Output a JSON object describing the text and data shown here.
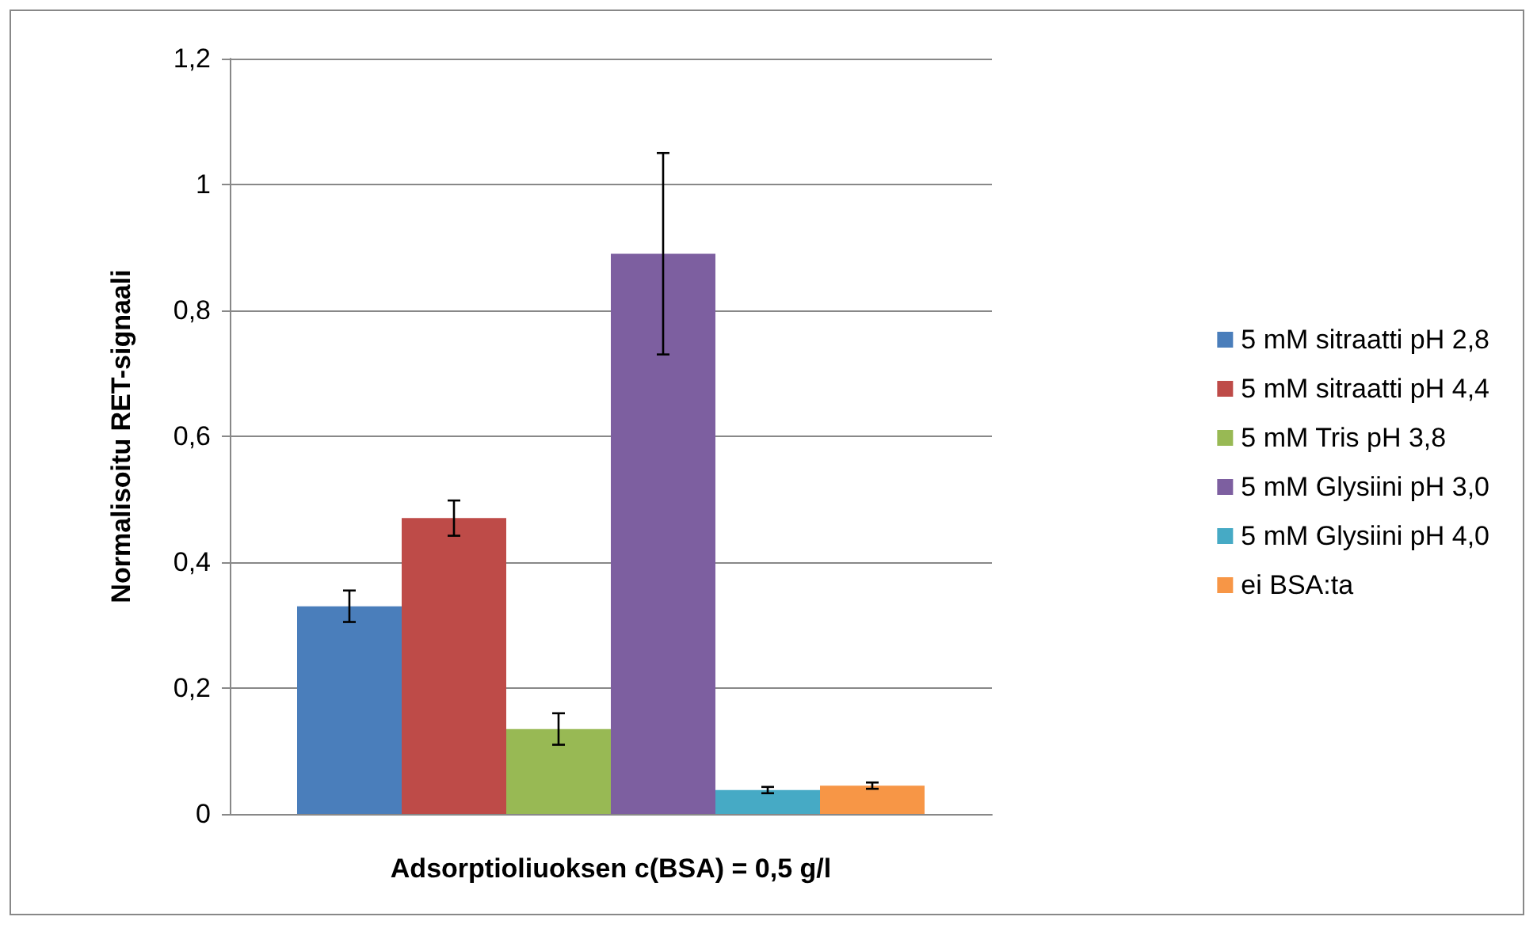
{
  "chart_data": {
    "type": "bar",
    "xlabel": "Adsorptioliuoksen c(BSA) = 0,5 g/l",
    "ylabel": "Normalisoitu RET-signaali",
    "categories": [
      null
    ],
    "series": [
      {
        "name": "5 mM sitraatti pH 2,8",
        "color": "#4a7ebb",
        "values": [
          0.33
        ],
        "errors": [
          0.025
        ]
      },
      {
        "name": "5 mM sitraatti pH 4,4",
        "color": "#be4b48",
        "values": [
          0.47
        ],
        "errors": [
          0.028
        ]
      },
      {
        "name": "5 mM Tris pH 3,8",
        "color": "#98b954",
        "values": [
          0.135
        ],
        "errors": [
          0.025
        ]
      },
      {
        "name": "5 mM Glysiini pH 3,0",
        "color": "#7d5fa0",
        "values": [
          0.89
        ],
        "errors": [
          0.16
        ]
      },
      {
        "name": "5 mM Glysiini pH 4,0",
        "color": "#46aac5",
        "values": [
          0.038
        ],
        "errors": [
          0.005
        ]
      },
      {
        "name": "ei BSA:ta",
        "color": "#f79646",
        "values": [
          0.045
        ],
        "errors": [
          0.005
        ]
      }
    ],
    "ylim": [
      0,
      1.2
    ],
    "yticks": [
      0,
      {
        "value": 0.2,
        "label": "0,2"
      },
      {
        "value": 0.4,
        "label": "0,4"
      },
      {
        "value": 0.6,
        "label": "0,6"
      },
      {
        "value": 0.8,
        "label": "0,8"
      },
      1,
      {
        "value": 1.2,
        "label": "1,2"
      }
    ],
    "grid": "y",
    "legend": "right"
  }
}
